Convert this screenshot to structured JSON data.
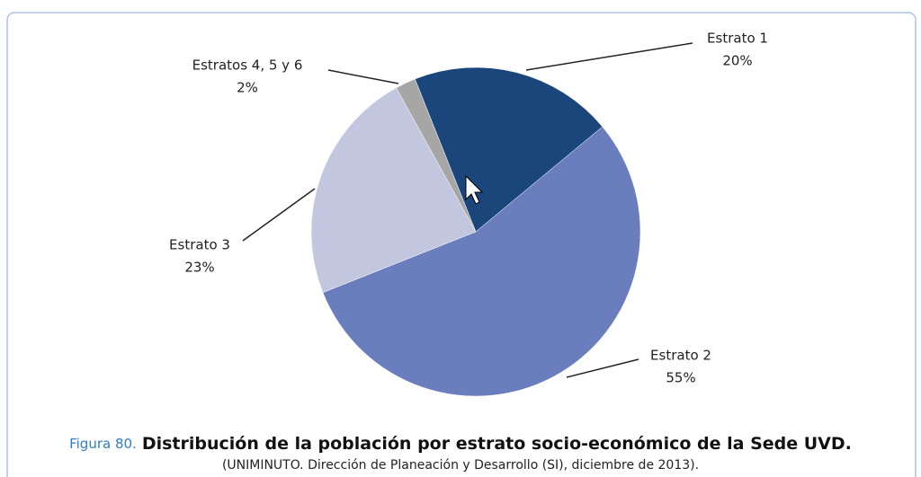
{
  "chart_data": {
    "type": "pie",
    "categories": [
      "Estrato 1",
      "Estrato 2",
      "Estrato 3",
      "Estratos 4, 5 y 6"
    ],
    "values": [
      20,
      55,
      23,
      2
    ],
    "value_labels": [
      "20%",
      "55%",
      "23%",
      "2%"
    ],
    "colors": [
      "#1b467b",
      "#6a7dbd",
      "#c2c6de",
      "#a6a6a6"
    ],
    "figure_label": "Figura 80.",
    "title": "Distribución de la población por estrato socio-económico de la Sede UVD.",
    "subtitle": "(UNIMINUTO. Dirección de Planeación y Desarrollo (SI), diciembre de 2013)."
  }
}
